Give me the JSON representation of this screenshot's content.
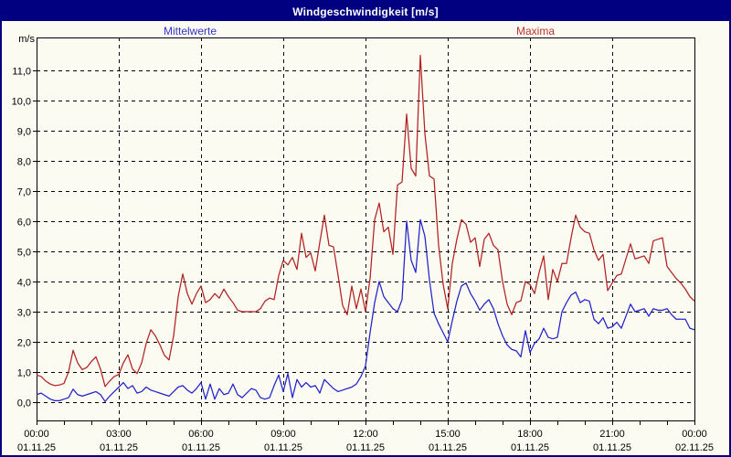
{
  "window": {
    "title": "Windgeschwindigkeit [m/s]"
  },
  "legend": {
    "mean_label": "Mittelwerte",
    "max_label": "Maxima"
  },
  "colors": {
    "frame_border": "#000080",
    "titlebar_bg": "#000080",
    "titlebar_text": "#FFFFFF",
    "background": "#FBFBF2",
    "grid": "#000000",
    "series_mean": "#2222CC",
    "series_max": "#B22222",
    "legend_mean_text": "#3333CC",
    "legend_max_text": "#C03030"
  },
  "chart_data": {
    "type": "line",
    "title": "Windgeschwindigkeit [m/s]",
    "y_unit_label": "m/s",
    "ylim": [
      -0.61,
      12.09
    ],
    "grid": "dashed",
    "legend_position": "top",
    "y_ticks": [
      {
        "value": 0,
        "label": "0,0"
      },
      {
        "value": 1,
        "label": "1,0"
      },
      {
        "value": 2,
        "label": "2,0"
      },
      {
        "value": 3,
        "label": "3,0"
      },
      {
        "value": 4,
        "label": "4,0"
      },
      {
        "value": 5,
        "label": "5,0"
      },
      {
        "value": 6,
        "label": "6,0"
      },
      {
        "value": 7,
        "label": "7,0"
      },
      {
        "value": 8,
        "label": "8,0"
      },
      {
        "value": 9,
        "label": "9,0"
      },
      {
        "value": 10,
        "label": "10,0"
      },
      {
        "value": 11,
        "label": "11,0"
      }
    ],
    "x_axis": {
      "start_hour": 0,
      "end_hour": 24,
      "sample_interval_minutes": 10,
      "major_tick_hours": 3,
      "minor_tick_hours": 1
    },
    "x_ticks": [
      {
        "hour": 0,
        "time": "00:00",
        "date": "01.11.25"
      },
      {
        "hour": 3,
        "time": "03:00",
        "date": "01.11.25"
      },
      {
        "hour": 6,
        "time": "06:00",
        "date": "01.11.25"
      },
      {
        "hour": 9,
        "time": "09:00",
        "date": "01.11.25"
      },
      {
        "hour": 12,
        "time": "12:00",
        "date": "01.11.25"
      },
      {
        "hour": 15,
        "time": "15:00",
        "date": "01.11.25"
      },
      {
        "hour": 18,
        "time": "18:00",
        "date": "01.11.25"
      },
      {
        "hour": 21,
        "time": "21:00",
        "date": "01.11.25"
      },
      {
        "hour": 24,
        "time": "00:00",
        "date": "02.11.25"
      }
    ],
    "series": [
      {
        "name": "Mittelwerte",
        "color": "#2222CC",
        "values": [
          0.25,
          0.3,
          0.2,
          0.1,
          0.05,
          0.05,
          0.1,
          0.15,
          0.43,
          0.25,
          0.2,
          0.25,
          0.3,
          0.35,
          0.25,
          0.02,
          0.2,
          0.35,
          0.5,
          0.65,
          0.45,
          0.55,
          0.3,
          0.35,
          0.5,
          0.4,
          0.35,
          0.3,
          0.25,
          0.2,
          0.35,
          0.5,
          0.55,
          0.4,
          0.3,
          0.45,
          0.65,
          0.1,
          0.6,
          0.1,
          0.45,
          0.25,
          0.3,
          0.6,
          0.25,
          0.15,
          0.3,
          0.45,
          0.4,
          0.15,
          0.1,
          0.15,
          0.55,
          0.9,
          0.35,
          0.95,
          0.15,
          0.75,
          0.5,
          0.65,
          0.5,
          0.55,
          0.3,
          0.75,
          0.6,
          0.45,
          0.35,
          0.4,
          0.45,
          0.5,
          0.6,
          0.85,
          1.2,
          2.3,
          3.3,
          4.0,
          3.5,
          3.3,
          3.1,
          3.0,
          3.4,
          6.0,
          4.7,
          4.3,
          6.05,
          5.5,
          4.05,
          2.95,
          2.6,
          2.3,
          2.0,
          2.7,
          3.35,
          3.85,
          3.95,
          3.6,
          3.35,
          3.05,
          3.25,
          3.4,
          3.1,
          2.6,
          2.2,
          1.9,
          1.75,
          1.7,
          1.5,
          2.37,
          1.65,
          1.95,
          2.1,
          2.45,
          2.15,
          2.1,
          2.15,
          3.0,
          3.3,
          3.55,
          3.65,
          3.3,
          3.4,
          3.35,
          2.75,
          2.6,
          2.8,
          2.45,
          2.5,
          2.65,
          2.45,
          2.85,
          3.25,
          3.0,
          3.05,
          3.1,
          2.85,
          3.1,
          3.05,
          3.05,
          3.1,
          2.9,
          2.75,
          2.75,
          2.75,
          2.45,
          2.4
        ]
      },
      {
        "name": "Maxima",
        "color": "#B22222",
        "values": [
          0.9,
          0.85,
          0.7,
          0.6,
          0.55,
          0.57,
          0.62,
          1.0,
          1.72,
          1.3,
          1.08,
          1.15,
          1.35,
          1.5,
          1.1,
          0.52,
          0.7,
          0.85,
          0.92,
          1.3,
          1.57,
          1.1,
          0.95,
          1.3,
          1.95,
          2.4,
          2.2,
          1.9,
          1.55,
          1.4,
          2.2,
          3.5,
          4.25,
          3.6,
          3.25,
          3.6,
          3.85,
          3.3,
          3.4,
          3.6,
          3.45,
          3.75,
          3.5,
          3.3,
          3.05,
          3.0,
          3.0,
          3.0,
          3.0,
          3.1,
          3.35,
          3.45,
          3.4,
          4.2,
          4.7,
          4.55,
          4.8,
          4.4,
          5.6,
          4.8,
          4.95,
          4.35,
          5.3,
          6.2,
          5.2,
          5.15,
          4.2,
          3.2,
          2.9,
          3.85,
          3.1,
          3.75,
          3.0,
          4.1,
          6.05,
          6.6,
          5.65,
          5.8,
          4.9,
          7.2,
          7.3,
          9.55,
          7.75,
          7.5,
          11.5,
          8.9,
          7.5,
          7.4,
          5.2,
          3.9,
          3.1,
          4.6,
          5.4,
          6.05,
          5.9,
          5.3,
          5.45,
          4.5,
          5.4,
          5.6,
          5.2,
          5.05,
          4.0,
          3.25,
          2.9,
          3.3,
          3.36,
          4.0,
          3.9,
          3.6,
          4.3,
          4.85,
          3.4,
          4.4,
          4.0,
          4.6,
          4.6,
          5.45,
          6.2,
          5.8,
          5.65,
          5.6,
          5.05,
          4.7,
          4.9,
          3.7,
          3.95,
          4.2,
          4.25,
          4.75,
          5.25,
          4.75,
          4.8,
          4.85,
          4.6,
          5.35,
          5.4,
          5.45,
          4.5,
          4.3,
          4.1,
          3.95,
          3.75,
          3.5,
          3.35
        ]
      }
    ]
  }
}
